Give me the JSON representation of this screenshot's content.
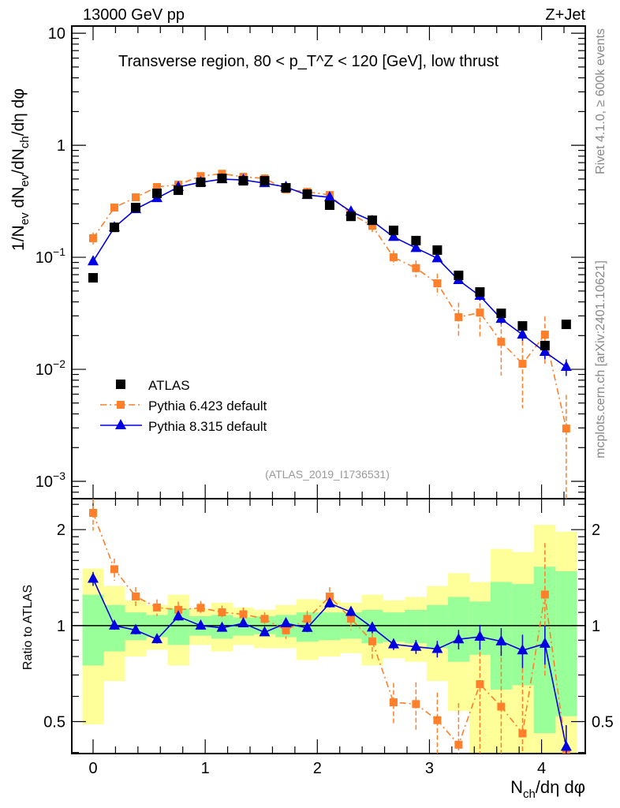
{
  "chart_data": [
    {
      "type": "scatter",
      "panel": "main",
      "title": "Transverse region, 80 < p_T^Z < 120 [GeV], low thrust",
      "title_parts": {
        "pre": "Transverse region, 80 < p",
        "sup": "Z",
        "sub": "T",
        "post": " < 120 [GeV], low thrust"
      },
      "top_left_label": "13000 GeV pp",
      "top_right_label": "Z+Jet",
      "ylabel": "1/N_ev dN_ev/dN_ch/dη dφ",
      "ylabel_parts": [
        "1/N",
        "ev",
        " dN",
        "ev",
        "/dN",
        "ch",
        "/dη dφ"
      ],
      "yscale": "log",
      "ylim": [
        0.0007,
        11.6
      ],
      "xlim": [
        -0.19,
        4.39
      ],
      "y_ticks": [
        {
          "value": 10,
          "label": "10"
        },
        {
          "value": 1,
          "label": "1"
        },
        {
          "value": 0.1,
          "label": "10",
          "exp": "−1"
        },
        {
          "value": 0.01,
          "label": "10",
          "exp": "−2"
        },
        {
          "value": 0.001,
          "label": "10",
          "exp": "−3"
        }
      ],
      "watermark": "(ATLAS_2019_I1736531)",
      "side_text_top": "Rivet 4.1.0, ≥ 600k events",
      "side_text_bottom": "mcplots.cern.ch [arXiv:2401.10621]",
      "legend_placement": "bottom-left",
      "x": [
        0,
        0.19,
        0.38,
        0.57,
        0.76,
        0.96,
        1.15,
        1.34,
        1.53,
        1.72,
        1.91,
        2.11,
        2.3,
        2.49,
        2.68,
        2.88,
        3.07,
        3.26,
        3.45,
        3.64,
        3.83,
        4.03,
        4.22
      ],
      "series": [
        {
          "name": "ATLAS",
          "color": "#000000",
          "marker": "square",
          "values": [
            0.0656,
            0.185,
            0.278,
            0.372,
            0.397,
            0.467,
            0.506,
            0.482,
            0.482,
            0.417,
            0.366,
            0.292,
            0.232,
            0.214,
            0.174,
            0.141,
            0.116,
            0.069,
            0.049,
            0.0316,
            0.0244,
            0.0163,
            0.0252
          ]
        },
        {
          "name": "Pythia 6.423 default",
          "color": "#ff7f2a",
          "marker": "square-small",
          "line": "dashdot",
          "values": [
            0.148,
            0.278,
            0.343,
            0.424,
            0.445,
            0.531,
            0.557,
            0.523,
            0.506,
            0.403,
            0.384,
            0.36,
            0.244,
            0.191,
            0.1,
            0.08,
            0.0586,
            0.0292,
            0.0321,
            0.0176,
            0.0112,
            0.0204,
            0.00296
          ],
          "rel_err": [
            0.12,
            0.08,
            0.07,
            0.06,
            0.06,
            0.05,
            0.05,
            0.05,
            0.05,
            0.06,
            0.06,
            0.07,
            0.08,
            0.12,
            0.15,
            0.17,
            0.22,
            0.35,
            0.4,
            0.5,
            0.6,
            0.45,
            1.0
          ]
        },
        {
          "name": "Pythia 8.315 default",
          "color": "#0000e0",
          "marker": "triangle",
          "line": "solid",
          "values": [
            0.092,
            0.185,
            0.269,
            0.337,
            0.424,
            0.467,
            0.498,
            0.49,
            0.459,
            0.424,
            0.36,
            0.343,
            0.256,
            0.211,
            0.152,
            0.121,
            0.098,
            0.0625,
            0.0452,
            0.0282,
            0.0204,
            0.0143,
            0.0105
          ],
          "rel_err": [
            0.05,
            0.03,
            0.03,
            0.03,
            0.03,
            0.02,
            0.02,
            0.02,
            0.02,
            0.02,
            0.03,
            0.03,
            0.03,
            0.04,
            0.04,
            0.05,
            0.06,
            0.07,
            0.09,
            0.1,
            0.12,
            0.14,
            0.17
          ]
        }
      ]
    },
    {
      "type": "scatter",
      "panel": "ratio",
      "ylabel": "Ratio to ATLAS",
      "xlabel": "N_ch/dη dφ",
      "xlabel_parts": [
        "N",
        "ch",
        "/dη dφ"
      ],
      "yscale": "log2",
      "ylim": [
        0.397,
        2.5
      ],
      "y_ticks": [
        {
          "value": 2,
          "label": "2"
        },
        {
          "value": 1,
          "label": "1"
        },
        {
          "value": 0.5,
          "label": "0.5"
        }
      ],
      "x_ticks": [
        {
          "value": 0,
          "label": "0"
        },
        {
          "value": 1,
          "label": "1"
        },
        {
          "value": 2,
          "label": "2"
        },
        {
          "value": 3,
          "label": "3"
        },
        {
          "value": 4,
          "label": "4"
        }
      ],
      "band_colors": {
        "outer": "#ffff99",
        "inner": "#99ff99"
      },
      "band_outer": [
        [
          0.49,
          1.51
        ],
        [
          0.67,
          1.33
        ],
        [
          0.8,
          1.2
        ],
        [
          0.84,
          1.16
        ],
        [
          0.75,
          1.25
        ],
        [
          0.87,
          1.13
        ],
        [
          0.83,
          1.18
        ],
        [
          0.87,
          1.14
        ],
        [
          0.85,
          1.12
        ],
        [
          0.85,
          1.16
        ],
        [
          0.78,
          1.21
        ],
        [
          0.8,
          1.2
        ],
        [
          0.82,
          1.18
        ],
        [
          0.75,
          1.25
        ],
        [
          0.79,
          1.2
        ],
        [
          0.77,
          1.23
        ],
        [
          0.67,
          1.33
        ],
        [
          0.54,
          1.46
        ],
        [
          0.3,
          1.37
        ],
        [
          0.3,
          1.74
        ],
        [
          0.3,
          1.7
        ],
        [
          0.3,
          2.07
        ],
        [
          0.3,
          1.97
        ]
      ],
      "band_inner": [
        [
          0.75,
          1.25
        ],
        [
          0.83,
          1.16
        ],
        [
          0.9,
          1.1
        ],
        [
          0.92,
          1.08
        ],
        [
          0.87,
          1.13
        ],
        [
          0.93,
          1.07
        ],
        [
          0.91,
          1.08
        ],
        [
          0.93,
          1.06
        ],
        [
          0.94,
          1.07
        ],
        [
          0.92,
          1.08
        ],
        [
          0.89,
          1.1
        ],
        [
          0.9,
          1.1
        ],
        [
          0.91,
          1.1
        ],
        [
          0.88,
          1.12
        ],
        [
          0.89,
          1.1
        ],
        [
          0.88,
          1.12
        ],
        [
          0.85,
          1.16
        ],
        [
          0.77,
          1.23
        ],
        [
          0.81,
          1.19
        ],
        [
          0.63,
          1.37
        ],
        [
          0.65,
          1.35
        ],
        [
          0.46,
          1.53
        ],
        [
          0.52,
          1.48
        ]
      ]
    }
  ]
}
